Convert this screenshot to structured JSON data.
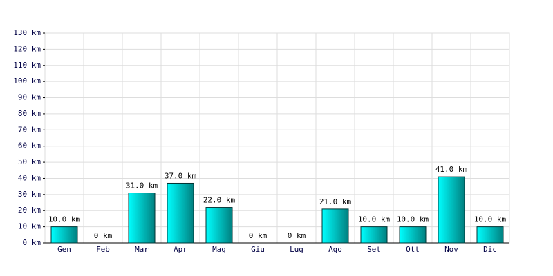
{
  "chart_data": {
    "type": "bar",
    "categories": [
      "Gen",
      "Feb",
      "Mar",
      "Apr",
      "Mag",
      "Giu",
      "Lug",
      "Ago",
      "Set",
      "Ott",
      "Nov",
      "Dic"
    ],
    "values": [
      10,
      0,
      31,
      37,
      22,
      0,
      0,
      21,
      10,
      10,
      41,
      10
    ],
    "value_labels": [
      "10.0 km",
      "0 km",
      "31.0 km",
      "37.0 km",
      "22.0 km",
      "0 km",
      "0 km",
      "21.0 km",
      "10.0 km",
      "10.0 km",
      "41.0 km",
      "10.0 km"
    ],
    "color": "#00cccc",
    "ylim": [
      0,
      130
    ],
    "yticks": [
      {
        "value": 0,
        "label": "0 km"
      },
      {
        "value": 10,
        "label": "10 km"
      },
      {
        "value": 20,
        "label": "20 km"
      },
      {
        "value": 30,
        "label": "30 km"
      },
      {
        "value": 40,
        "label": "40 km"
      },
      {
        "value": 50,
        "label": "50 km"
      },
      {
        "value": 60,
        "label": "60 km"
      },
      {
        "value": 70,
        "label": "70 km"
      },
      {
        "value": 80,
        "label": "80 km"
      },
      {
        "value": 90,
        "label": "90 km"
      },
      {
        "value": 100,
        "label": "100 km"
      },
      {
        "value": 110,
        "label": "110 km"
      },
      {
        "value": 120,
        "label": "120 km"
      },
      {
        "value": 130,
        "label": "130 km"
      }
    ],
    "grid": true
  }
}
